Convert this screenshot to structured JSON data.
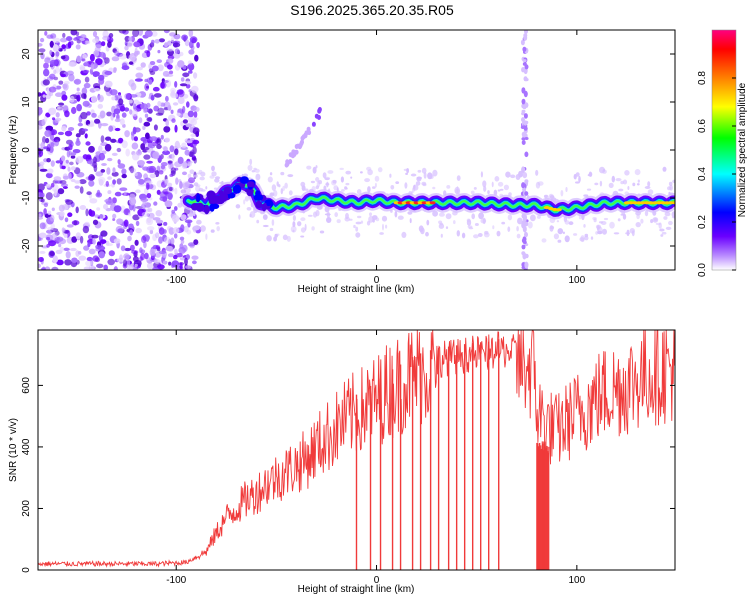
{
  "figure_title": "S196.2025.365.20.35.R05",
  "chart_data": [
    {
      "type": "heatmap",
      "title": "",
      "xlabel": "Height of straight line (km)",
      "ylabel": "Frequency (Hz)",
      "xlim": [
        -169,
        149
      ],
      "ylim": [
        -25,
        25
      ],
      "xticks": [
        -100,
        0,
        100
      ],
      "yticks": [
        -20,
        -10,
        0,
        10,
        20
      ],
      "colorbar": {
        "label": "Normalized spectral amplitude",
        "range": [
          0,
          1
        ],
        "ticks": [
          "0.0",
          "0.2",
          "0.4",
          "0.6",
          "0.8"
        ],
        "colors": [
          "#ffffff",
          "#b98bff",
          "#6a00ff",
          "#0000ff",
          "#00ffff",
          "#00ff00",
          "#ffff00",
          "#ff8000",
          "#ff0000",
          "#ff0080"
        ]
      },
      "noise_region_km": [
        -169,
        -95
      ],
      "ridge": [
        {
          "x": -93,
          "y": -10.5
        },
        {
          "x": -85,
          "y": -11.5
        },
        {
          "x": -78,
          "y": -9.5
        },
        {
          "x": -70,
          "y": -7.5
        },
        {
          "x": -64,
          "y": -7
        },
        {
          "x": -58,
          "y": -11
        },
        {
          "x": -50,
          "y": -12
        },
        {
          "x": -40,
          "y": -11.5
        },
        {
          "x": -30,
          "y": -10
        },
        {
          "x": -20,
          "y": -10.5
        },
        {
          "x": -10,
          "y": -11
        },
        {
          "x": 0,
          "y": -10.5
        },
        {
          "x": 10,
          "y": -11
        },
        {
          "x": 30,
          "y": -11
        },
        {
          "x": 50,
          "y": -11
        },
        {
          "x": 70,
          "y": -11.5
        },
        {
          "x": 80,
          "y": -11.5
        },
        {
          "x": 90,
          "y": -12.5
        },
        {
          "x": 100,
          "y": -12
        },
        {
          "x": 115,
          "y": -11
        },
        {
          "x": 130,
          "y": -11
        },
        {
          "x": 149,
          "y": -11
        }
      ],
      "ridge_peak_color_segments": [
        [
          10,
          28
        ],
        [
          85,
          92
        ],
        [
          125,
          149
        ]
      ],
      "side_branch": [
        {
          "x": -45,
          "y": -3
        },
        {
          "x": -35,
          "y": 2
        },
        {
          "x": -28,
          "y": 8
        }
      ],
      "vertical_stripe_km": 74
    },
    {
      "type": "line",
      "title": "",
      "xlabel": "Height of straight line (km)",
      "ylabel": "SNR (10 * v/v)",
      "xlim": [
        -169,
        149
      ],
      "ylim": [
        0,
        780
      ],
      "xticks": [
        -100,
        0,
        100
      ],
      "yticks": [
        0,
        200,
        400,
        600
      ],
      "series": [
        {
          "name": "SNR",
          "color": "#f03a3a",
          "x": [
            -169,
            -150,
            -130,
            -110,
            -95,
            -85,
            -80,
            -75,
            -70,
            -65,
            -60,
            -55,
            -50,
            -45,
            -40,
            -35,
            -30,
            -25,
            -20,
            -15,
            -10,
            -5,
            0,
            5,
            10,
            15,
            20,
            25,
            30,
            35,
            40,
            45,
            50,
            55,
            60,
            65,
            70,
            75,
            79,
            80,
            85,
            90,
            95,
            100,
            105,
            110,
            115,
            120,
            125,
            130,
            135,
            140,
            145,
            149
          ],
          "y": [
            20,
            20,
            20,
            20,
            25,
            60,
            120,
            170,
            200,
            230,
            250,
            280,
            300,
            320,
            340,
            360,
            400,
            430,
            460,
            490,
            510,
            530,
            550,
            580,
            600,
            620,
            640,
            650,
            660,
            665,
            670,
            675,
            680,
            680,
            690,
            690,
            680,
            670,
            640,
            520,
            470,
            450,
            480,
            510,
            530,
            560,
            580,
            590,
            600,
            620,
            640,
            650,
            655,
            660
          ]
        }
      ],
      "dropouts_km": [
        -10,
        -3,
        2,
        8,
        12,
        18,
        22,
        27,
        31,
        36,
        40,
        44,
        48,
        52,
        56,
        61
      ],
      "dropout_band_km": [
        80,
        86
      ]
    }
  ]
}
